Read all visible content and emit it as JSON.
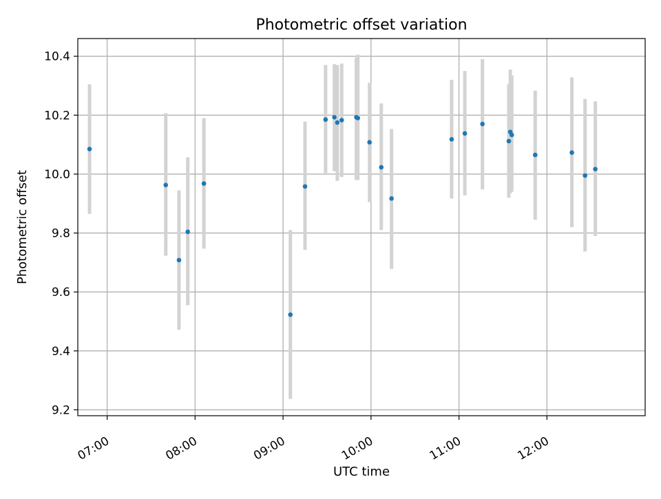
{
  "chart_data": {
    "type": "scatter",
    "title": "Photometric offset variation",
    "xlabel": "UTC time",
    "ylabel": "Photometric offset",
    "x_axis": "time",
    "xlim": [
      "06:40",
      "13:07"
    ],
    "ylim": [
      9.18,
      10.46
    ],
    "xticks": [
      "07:00",
      "08:00",
      "09:00",
      "10:00",
      "11:00",
      "12:00"
    ],
    "yticks": [
      "9.2",
      "9.4",
      "9.6",
      "9.8",
      "10.0",
      "10.2",
      "10.4"
    ],
    "grid": true,
    "legend": false,
    "colors": {
      "point": "#1f77b4",
      "errorbar": "#d3d3d3",
      "grid": "#b0b0b0"
    },
    "series": [
      {
        "points": [
          {
            "x": "06:48",
            "y": 10.085,
            "ymin": 9.865,
            "ymax": 10.305
          },
          {
            "x": "07:40",
            "y": 9.963,
            "ymin": 9.723,
            "ymax": 10.207
          },
          {
            "x": "07:49",
            "y": 9.708,
            "ymin": 9.472,
            "ymax": 9.945
          },
          {
            "x": "07:55",
            "y": 9.804,
            "ymin": 9.555,
            "ymax": 10.057
          },
          {
            "x": "08:06",
            "y": 9.968,
            "ymin": 9.747,
            "ymax": 10.19
          },
          {
            "x": "09:05",
            "y": 9.523,
            "ymin": 9.237,
            "ymax": 9.81
          },
          {
            "x": "09:15",
            "y": 9.958,
            "ymin": 9.743,
            "ymax": 10.178
          },
          {
            "x": "09:29",
            "y": 10.185,
            "ymin": 10.003,
            "ymax": 10.37
          },
          {
            "x": "09:35",
            "y": 10.193,
            "ymin": 10.01,
            "ymax": 10.373
          },
          {
            "x": "09:37",
            "y": 10.175,
            "ymin": 9.977,
            "ymax": 10.37
          },
          {
            "x": "09:40",
            "y": 10.183,
            "ymin": 9.99,
            "ymax": 10.375
          },
          {
            "x": "09:50",
            "y": 10.193,
            "ymin": 9.98,
            "ymax": 10.395
          },
          {
            "x": "09:51",
            "y": 10.19,
            "ymin": 9.98,
            "ymax": 10.405
          },
          {
            "x": "09:59",
            "y": 10.108,
            "ymin": 9.905,
            "ymax": 10.31
          },
          {
            "x": "10:07",
            "y": 10.023,
            "ymin": 9.81,
            "ymax": 10.24
          },
          {
            "x": "10:14",
            "y": 9.917,
            "ymin": 9.678,
            "ymax": 10.153
          },
          {
            "x": "10:55",
            "y": 10.118,
            "ymin": 9.917,
            "ymax": 10.32
          },
          {
            "x": "11:04",
            "y": 10.138,
            "ymin": 9.928,
            "ymax": 10.35
          },
          {
            "x": "11:16",
            "y": 10.17,
            "ymin": 9.948,
            "ymax": 10.39
          },
          {
            "x": "11:34",
            "y": 10.112,
            "ymin": 9.92,
            "ymax": 10.305
          },
          {
            "x": "11:35",
            "y": 10.143,
            "ymin": 9.935,
            "ymax": 10.355
          },
          {
            "x": "11:36",
            "y": 10.133,
            "ymin": 9.94,
            "ymax": 10.335
          },
          {
            "x": "11:52",
            "y": 10.065,
            "ymin": 9.845,
            "ymax": 10.283
          },
          {
            "x": "12:17",
            "y": 10.073,
            "ymin": 9.82,
            "ymax": 10.328
          },
          {
            "x": "12:26",
            "y": 9.995,
            "ymin": 9.737,
            "ymax": 10.255
          },
          {
            "x": "12:33",
            "y": 10.017,
            "ymin": 9.79,
            "ymax": 10.247
          }
        ]
      }
    ]
  }
}
